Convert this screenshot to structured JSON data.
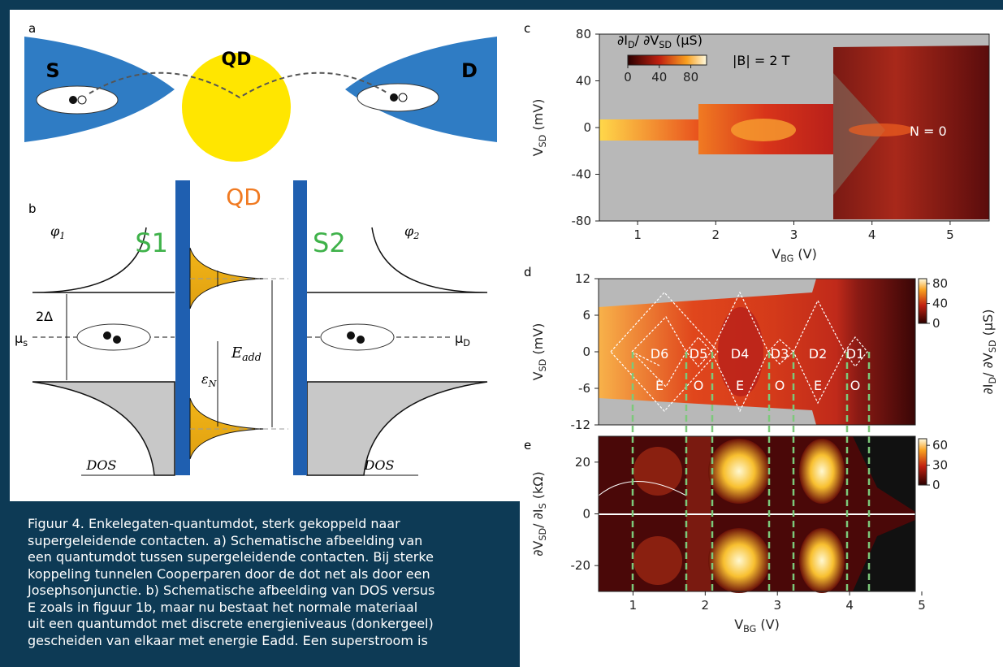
{
  "panel_labels": [
    "a",
    "b",
    "c",
    "d",
    "e"
  ],
  "panel_a": {
    "source": "S",
    "dot": "QD",
    "drain": "D"
  },
  "panel_b": {
    "dot": "QD",
    "lead_left": "S1",
    "lead_right": "S2",
    "phase_left": [
      "φ",
      "1"
    ],
    "phase_right": [
      "φ",
      "2"
    ],
    "gap": "2Δ",
    "mu_left": [
      "μ",
      "s"
    ],
    "mu_right": [
      "μ",
      "D"
    ],
    "addition": [
      "E",
      "add"
    ],
    "level": [
      "ε",
      "N"
    ],
    "dos_left": "DOS",
    "dos_right": "DOS"
  },
  "panel_c": {
    "xlim": [
      0.5,
      5.5
    ],
    "xticks": [
      1,
      2,
      3,
      4,
      5
    ],
    "ylim": [
      -80,
      80
    ],
    "yticks": [
      80,
      40,
      0,
      -40,
      -80
    ],
    "xlabel": [
      "V",
      "BG",
      " (V)"
    ],
    "ylabel": [
      "V",
      "SD",
      " (mV)"
    ],
    "colorbar_label": [
      "∂I",
      "D",
      "/ ∂V",
      "SD",
      " (μS)"
    ],
    "colorbar_lim": [
      0,
      100
    ],
    "colorbar_ticks": [
      0,
      40,
      80
    ],
    "field": "|B| = 2 T",
    "state": "N = 0"
  },
  "panel_d": {
    "xlim": [
      0.5,
      5
    ],
    "ylim": [
      -12,
      12
    ],
    "yticks": [
      12,
      6,
      0,
      -6,
      -12
    ],
    "ylabel": [
      "V",
      "SD",
      " (mV)"
    ],
    "colorbar_label": [
      "∂I",
      "D",
      "/ ∂V",
      "SD",
      " (μS)"
    ],
    "colorbar_lim": [
      0,
      90
    ],
    "colorbar_ticks": [
      80,
      40,
      0
    ],
    "dots": [
      "D6",
      "D5",
      "D4",
      "D3",
      "D2",
      "D1"
    ],
    "parity": [
      "E",
      "O",
      "E",
      "O",
      "E",
      "O"
    ]
  },
  "panel_e": {
    "xlim": [
      0.5,
      5
    ],
    "xticks": [
      1,
      2,
      3,
      4,
      5
    ],
    "ylim": [
      -30,
      30
    ],
    "yticks": [
      20,
      0,
      -20
    ],
    "xlabel": [
      "V",
      "BG",
      " (V)"
    ],
    "ylabel": [
      "∂V",
      "SD",
      "/ ∂I",
      "S",
      " (kΩ)"
    ],
    "colorbar_lim": [
      0,
      70
    ],
    "colorbar_ticks": [
      60,
      30,
      0
    ]
  },
  "caption": [
    "Figuur 4. Enkelegaten-quantumdot, sterk gekoppeld naar",
    "supergeleidende contacten. a) Schematische afbeelding van",
    "een quantumdot tussen supergeleidende contacten. Bij sterke",
    "koppeling tunnelen Cooperparen door de dot net als door een",
    "Josephsonjunctie. b) Schematische afbeelding van DOS versus",
    "E zoals in figuur 1b, maar nu bestaat het normale materiaal",
    "uit een quantumdot met discrete energieniveaus (donkergeel)",
    "gescheiden van elkaar met energie Eadd. Een superstroom is"
  ]
}
